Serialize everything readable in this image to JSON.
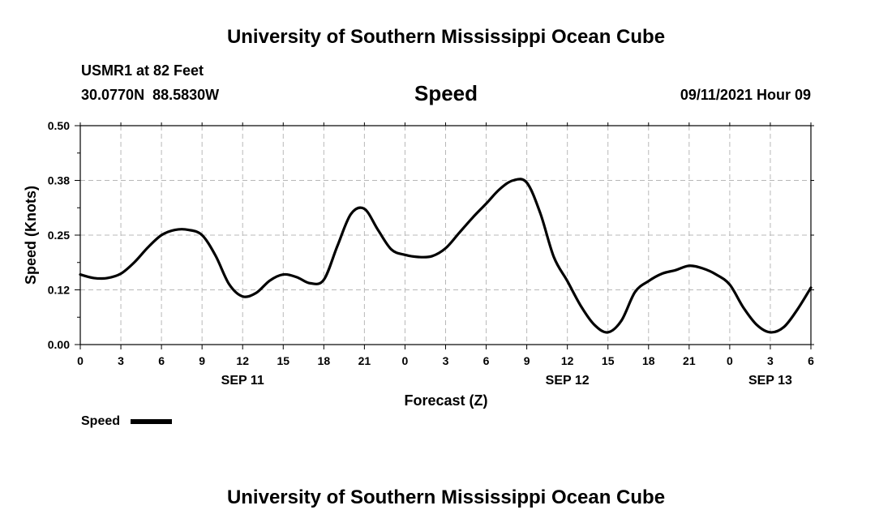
{
  "header": {
    "title_top": "University of Southern Mississippi Ocean Cube",
    "station": "USMR1 at 82 Feet",
    "coords": "30.0770N  88.5830W",
    "chart_title": "Speed",
    "timestamp": "09/11/2021 Hour 09",
    "title_bottom": "University of Southern Mississippi Ocean Cube"
  },
  "chart_data": {
    "type": "line",
    "title": "Speed",
    "xlabel": "Forecast (Z)",
    "ylabel": "Speed (Knots)",
    "x_unit": "hours since 2021-09-11 00Z",
    "xlim": [
      0,
      54
    ],
    "ylim": [
      0,
      0.5
    ],
    "grid": true,
    "x_ticks": [
      {
        "x": 0,
        "label": "0"
      },
      {
        "x": 3,
        "label": "3"
      },
      {
        "x": 6,
        "label": "6"
      },
      {
        "x": 9,
        "label": "9"
      },
      {
        "x": 12,
        "label": "12"
      },
      {
        "x": 15,
        "label": "15"
      },
      {
        "x": 18,
        "label": "18"
      },
      {
        "x": 21,
        "label": "21"
      },
      {
        "x": 24,
        "label": "0"
      },
      {
        "x": 27,
        "label": "3"
      },
      {
        "x": 30,
        "label": "6"
      },
      {
        "x": 33,
        "label": "9"
      },
      {
        "x": 36,
        "label": "12"
      },
      {
        "x": 39,
        "label": "15"
      },
      {
        "x": 42,
        "label": "18"
      },
      {
        "x": 45,
        "label": "21"
      },
      {
        "x": 48,
        "label": "0"
      },
      {
        "x": 51,
        "label": "3"
      },
      {
        "x": 54,
        "label": "6"
      }
    ],
    "y_ticks": [
      {
        "y": 0.0,
        "label": "0.00"
      },
      {
        "y": 0.125,
        "label": "0.12"
      },
      {
        "y": 0.25,
        "label": "0.25"
      },
      {
        "y": 0.375,
        "label": "0.38"
      },
      {
        "y": 0.5,
        "label": "0.50"
      }
    ],
    "date_labels": [
      {
        "x": 12,
        "label": "SEP 11"
      },
      {
        "x": 36,
        "label": "SEP 12"
      },
      {
        "x": 51,
        "label": "SEP 13"
      }
    ],
    "series": [
      {
        "name": "Speed",
        "color": "#000000",
        "x": [
          0,
          1,
          2,
          3,
          4,
          5,
          6,
          7,
          8,
          9,
          10,
          11,
          12,
          13,
          14,
          15,
          16,
          17,
          18,
          19,
          20,
          21,
          22,
          23,
          24,
          25,
          26,
          27,
          28,
          29,
          30,
          31,
          32,
          33,
          34,
          35,
          36,
          37,
          38,
          39,
          40,
          41,
          42,
          43,
          44,
          45,
          46,
          47,
          48,
          49,
          50,
          51,
          52,
          53,
          54
        ],
        "y": [
          0.16,
          0.152,
          0.152,
          0.162,
          0.188,
          0.222,
          0.25,
          0.262,
          0.262,
          0.25,
          0.203,
          0.138,
          0.11,
          0.118,
          0.146,
          0.16,
          0.154,
          0.14,
          0.148,
          0.225,
          0.298,
          0.31,
          0.262,
          0.217,
          0.205,
          0.2,
          0.202,
          0.22,
          0.255,
          0.29,
          0.322,
          0.355,
          0.375,
          0.37,
          0.3,
          0.2,
          0.145,
          0.088,
          0.045,
          0.028,
          0.055,
          0.12,
          0.145,
          0.162,
          0.17,
          0.18,
          0.174,
          0.16,
          0.137,
          0.085,
          0.045,
          0.028,
          0.04,
          0.08,
          0.13
        ]
      }
    ],
    "legend": [
      {
        "label": "Speed",
        "placement": "bottom-left"
      }
    ]
  }
}
